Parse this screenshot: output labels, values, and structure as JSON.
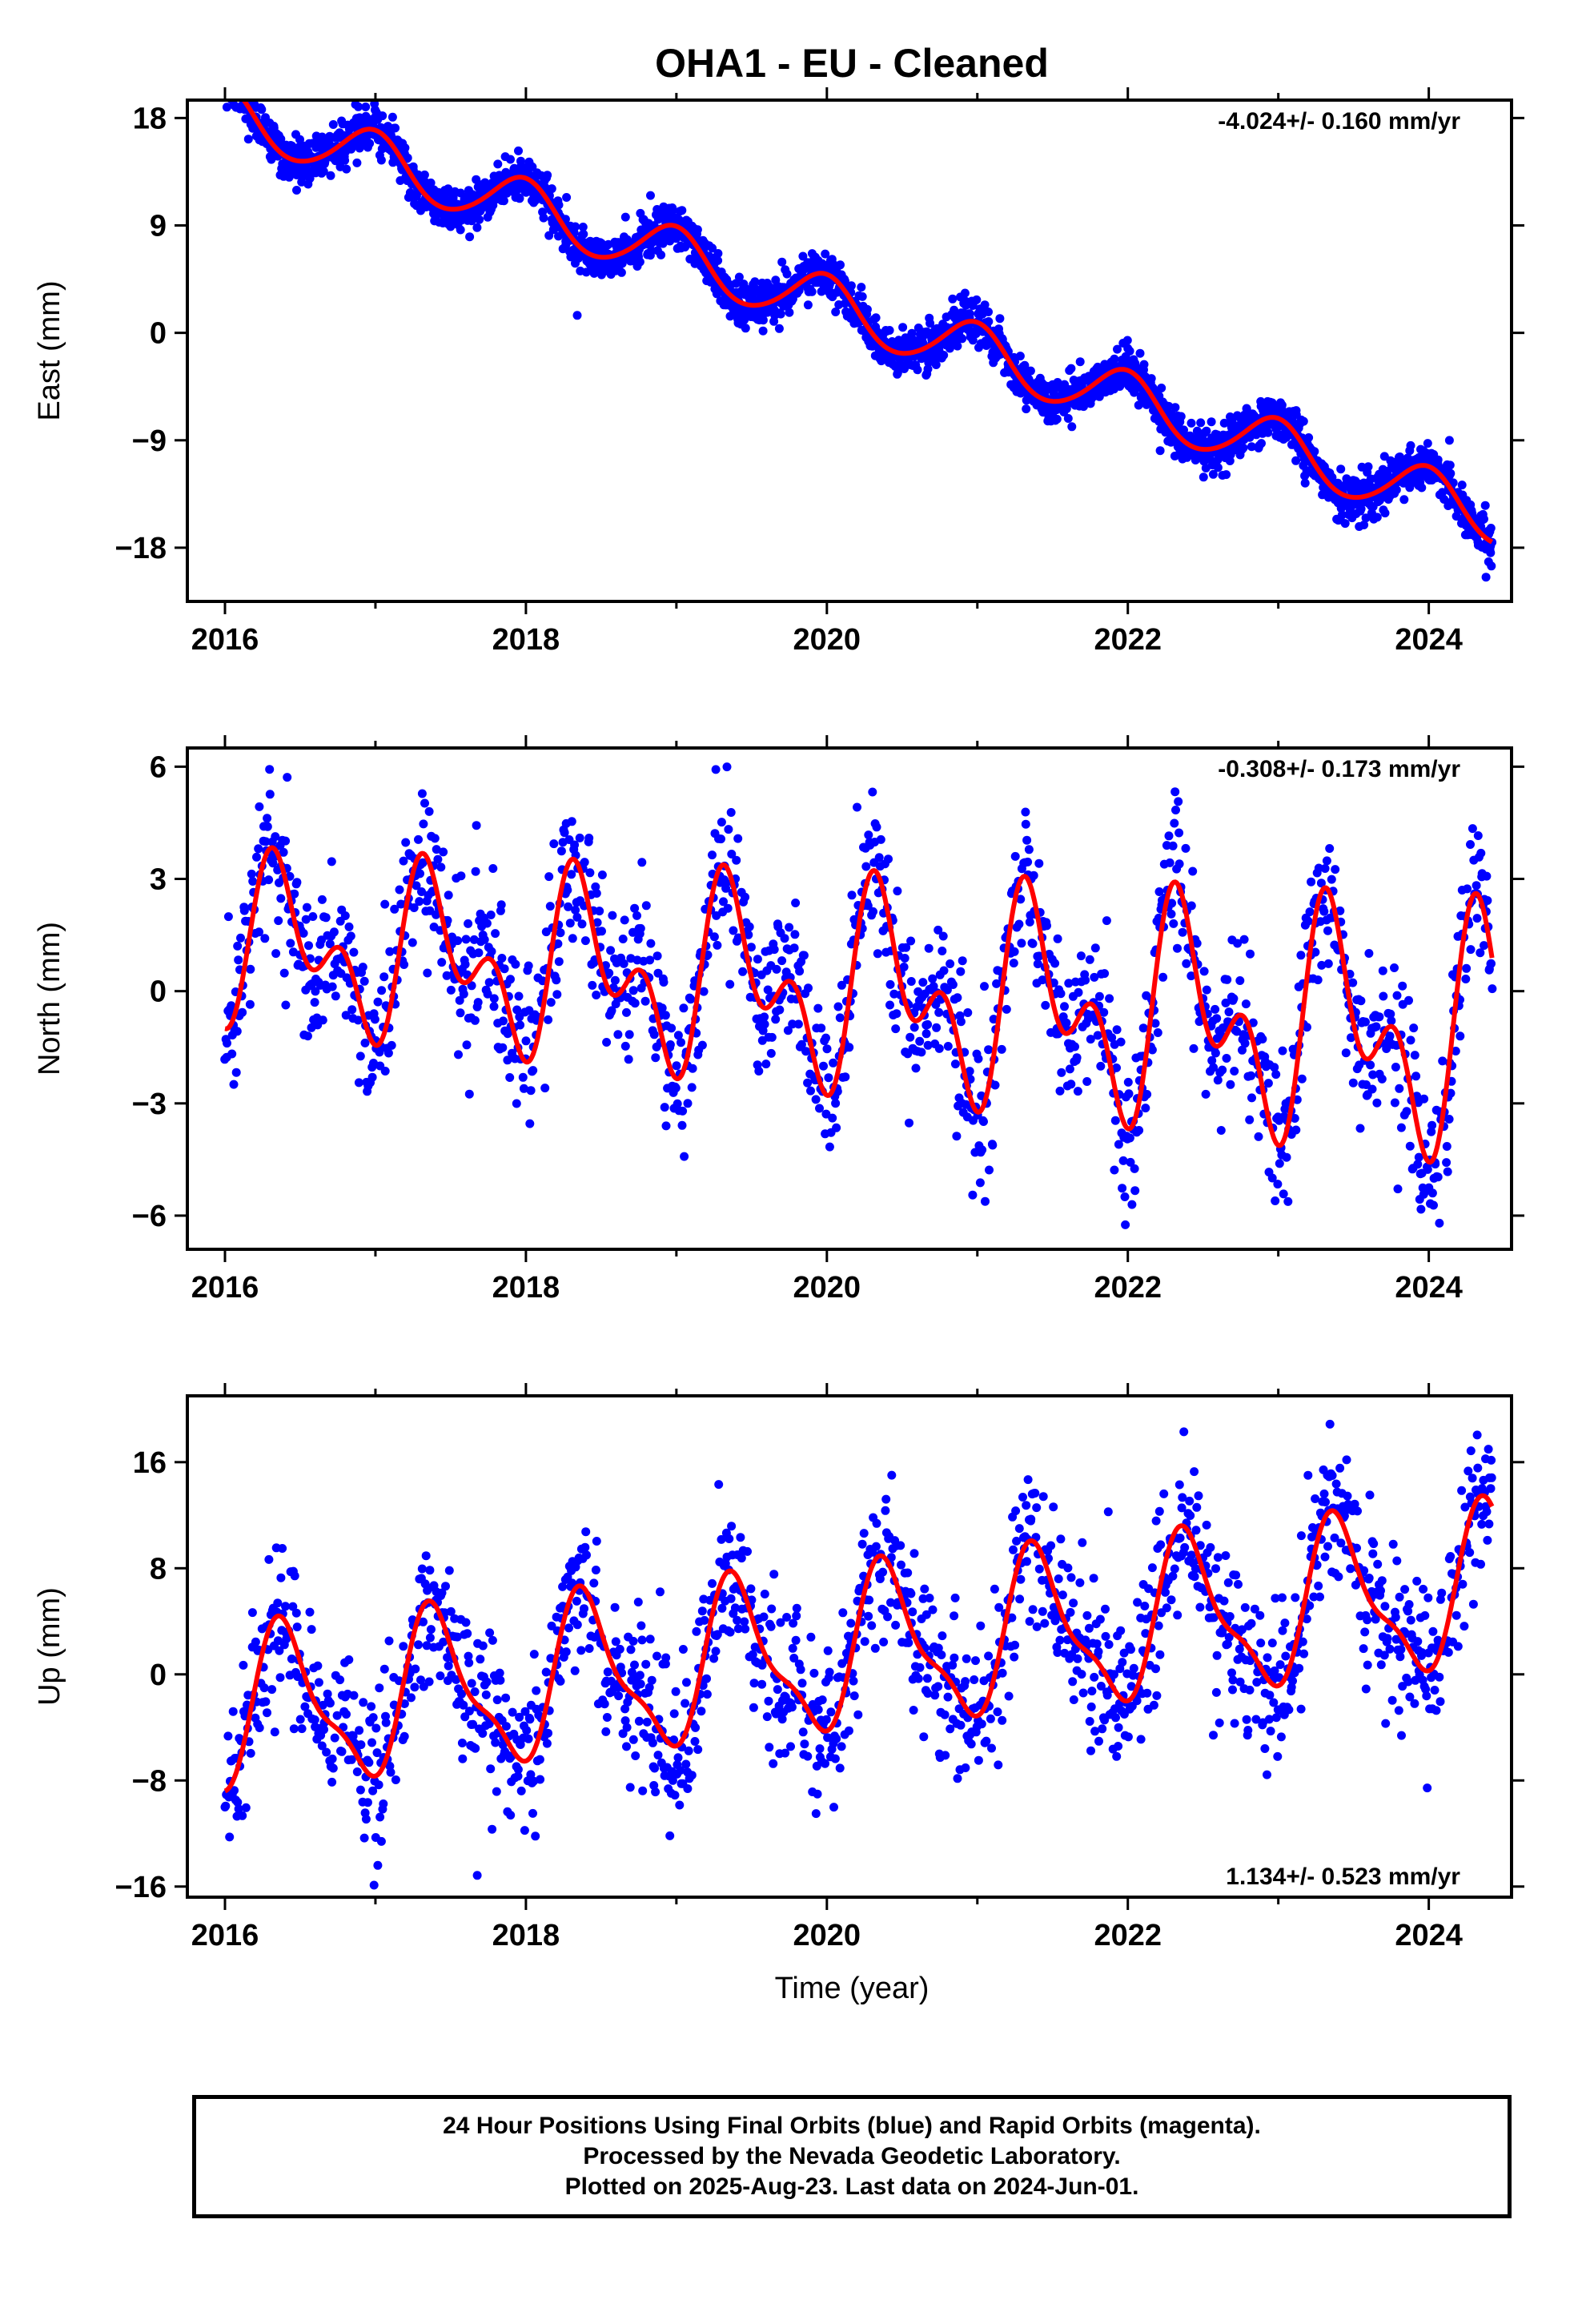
{
  "figure": {
    "title": "OHA1  - EU - Cleaned",
    "xlabel": "Time (year)"
  },
  "colors": {
    "final_orbits": "#0000ff",
    "model_fit": "#ff0000",
    "frame": "#000000"
  },
  "footer": {
    "line1": "24 Hour Positions Using Final Orbits (blue) and Rapid Orbits (magenta).",
    "line2": "Processed by the Nevada Geodetic Laboratory.",
    "line3": "Plotted on 2025-Aug-23. Last data on 2024-Jun-01."
  },
  "chart_data": [
    {
      "type": "scatter",
      "panel": "east",
      "ylabel": "East (mm)",
      "rate_label": "-4.024+/- 0.160 mm/yr",
      "rate_position": "top-right",
      "xlim": [
        2015.75,
        2024.55
      ],
      "ylim": [
        -22.5,
        19.5
      ],
      "xticks": [
        2016,
        2018,
        2020,
        2022,
        2024
      ],
      "yticks": [
        18,
        9,
        0,
        -9,
        -18
      ],
      "series": [
        {
          "kind": "points",
          "points_per_year": 365,
          "start": 2016.0,
          "end": 2024.42
        },
        {
          "kind": "line",
          "model": {
            "t0": 2016.0,
            "intercept": 18.5,
            "rate": -4.024,
            "annual": [
              {
                "cos": 2.3,
                "sin": -0.3
              }
            ],
            "semiannual": [
              {
                "cos": 0.2,
                "sin": 0.1
              }
            ],
            "noise": 0.9
          }
        }
      ]
    },
    {
      "type": "scatter",
      "panel": "north",
      "ylabel": "North (mm)",
      "rate_label": "-0.308+/- 0.173 mm/yr",
      "rate_position": "top-right",
      "xlim": [
        2015.75,
        2024.55
      ],
      "ylim": [
        -6.9,
        6.5
      ],
      "xticks": [
        2016,
        2018,
        2020,
        2022,
        2024
      ],
      "yticks": [
        6,
        3,
        0,
        -3,
        -6
      ],
      "series": [
        {
          "kind": "points",
          "points_per_year": 200,
          "start": 2016.0,
          "end": 2024.42
        },
        {
          "kind": "line",
          "model": {
            "t0": 2016.0,
            "intercept": 1.3,
            "rate": -0.308,
            "annual": [
              {
                "cos": -1.2,
                "sin": 1.0
              }
            ],
            "semiannual": [
              {
                "cos": -1.1,
                "sin": -0.6
              }
            ],
            "growth": 0.06,
            "noise": 1.0
          }
        }
      ]
    },
    {
      "type": "scatter",
      "panel": "up",
      "ylabel": "Up (mm)",
      "rate_label": "1.134+/- 0.523 mm/yr",
      "rate_position": "bottom-right",
      "xlim": [
        2015.75,
        2024.55
      ],
      "ylim": [
        -16.8,
        21
      ],
      "xticks": [
        2016,
        2018,
        2020,
        2022,
        2024
      ],
      "yticks": [
        16,
        8,
        0,
        -8,
        -16
      ],
      "series": [
        {
          "kind": "points",
          "points_per_year": 200,
          "start": 2016.0,
          "end": 2024.42
        },
        {
          "kind": "line",
          "model": {
            "t0": 2016.0,
            "intercept": -3.0,
            "rate": 1.134,
            "annual": [
              {
                "cos": -4.6,
                "sin": 3.2
              }
            ],
            "semiannual": [
              {
                "cos": -1.2,
                "sin": -1.4
              }
            ],
            "noise": 3.0
          }
        }
      ]
    }
  ]
}
